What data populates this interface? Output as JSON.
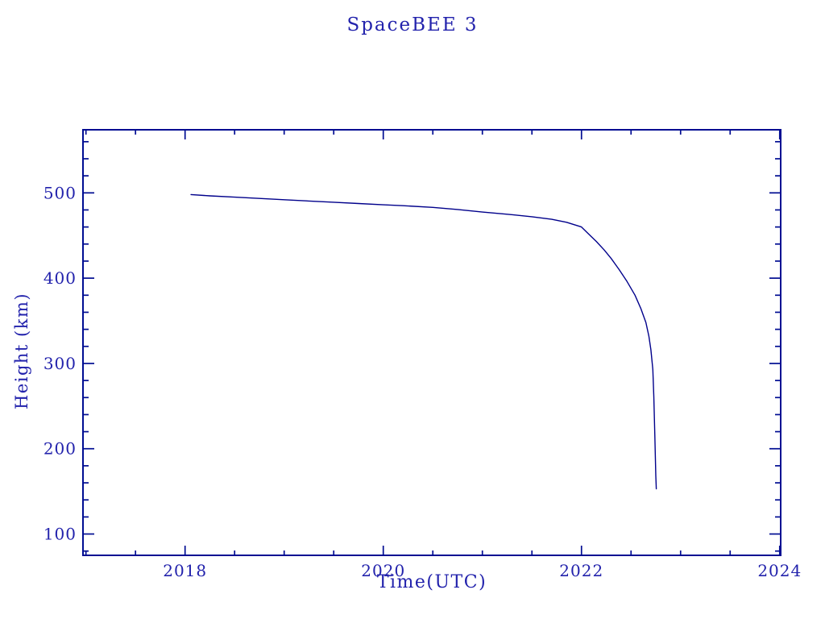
{
  "page": {
    "background": "#ffffff"
  },
  "chart_data": {
    "type": "line",
    "title": "SpaceBEE 3",
    "xlabel": "Time(UTC)",
    "ylabel": "Height (km)",
    "xlim": [
      2016.97,
      2024.01
    ],
    "ylim": [
      75,
      574
    ],
    "x_ticks_major": [
      2018,
      2020,
      2022,
      2024
    ],
    "x_tick_labels": [
      "2018",
      "2020",
      "2022",
      "2024"
    ],
    "x_minor_step": 0.5,
    "y_ticks_major": [
      100,
      200,
      300,
      400,
      500
    ],
    "y_tick_labels": [
      "100",
      "200",
      "300",
      "400",
      "500"
    ],
    "y_minor_step": 20,
    "grid": false,
    "legend": "none",
    "colors": {
      "line": "#00008b",
      "axis": "#000d92",
      "text": "#2222ac",
      "background": "#ffffff"
    },
    "series": [
      {
        "name": "SpaceBEE 3",
        "points": [
          [
            2018.06,
            498
          ],
          [
            2018.25,
            496.5
          ],
          [
            2018.5,
            495
          ],
          [
            2018.75,
            493.5
          ],
          [
            2019.0,
            492
          ],
          [
            2019.25,
            490.5
          ],
          [
            2019.5,
            489
          ],
          [
            2019.75,
            487.5
          ],
          [
            2020.0,
            486
          ],
          [
            2020.2,
            485
          ],
          [
            2020.5,
            483
          ],
          [
            2020.75,
            480.5
          ],
          [
            2021.0,
            477.5
          ],
          [
            2021.25,
            475
          ],
          [
            2021.5,
            472
          ],
          [
            2021.7,
            469
          ],
          [
            2021.85,
            465.5
          ],
          [
            2022.0,
            460
          ],
          [
            2022.07,
            452
          ],
          [
            2022.15,
            443
          ],
          [
            2022.23,
            433
          ],
          [
            2022.3,
            423
          ],
          [
            2022.38,
            410
          ],
          [
            2022.46,
            396
          ],
          [
            2022.54,
            380
          ],
          [
            2022.6,
            364
          ],
          [
            2022.65,
            348
          ],
          [
            2022.68,
            332
          ],
          [
            2022.7,
            316
          ],
          [
            2022.72,
            293
          ],
          [
            2022.73,
            262
          ],
          [
            2022.74,
            215
          ],
          [
            2022.75,
            168
          ],
          [
            2022.755,
            153
          ]
        ]
      }
    ]
  }
}
